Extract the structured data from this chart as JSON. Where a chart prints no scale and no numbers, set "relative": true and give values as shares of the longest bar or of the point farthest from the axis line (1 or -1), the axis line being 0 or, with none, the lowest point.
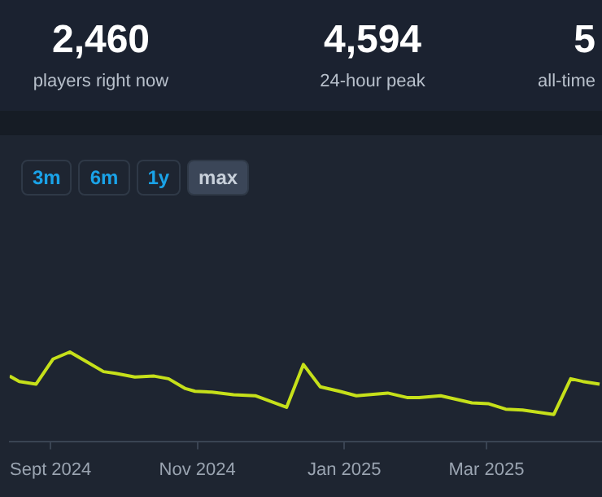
{
  "chart_data": {
    "type": "line",
    "relative": true,
    "annotations": [
      "2,460",
      "players right now",
      "4,594",
      "24-hour peak",
      "5",
      "all-time",
      "3m",
      "6m",
      "1y",
      "max"
    ],
    "x": [
      "2024-08-15",
      "2024-08-19",
      "2024-08-26",
      "2024-09-02",
      "2024-09-09",
      "2024-09-16",
      "2024-09-23",
      "2024-09-28",
      "2024-10-06",
      "2024-10-14",
      "2024-10-20",
      "2024-10-27",
      "2024-10-31",
      "2024-11-07",
      "2024-11-16",
      "2024-11-25",
      "2024-12-08",
      "2024-12-15",
      "2024-12-22",
      "2024-12-30",
      "2025-01-06",
      "2025-01-19",
      "2025-01-27",
      "2025-02-01",
      "2025-02-10",
      "2025-02-23",
      "2025-03-02",
      "2025-03-09",
      "2025-03-16",
      "2025-03-29",
      "2025-04-05",
      "2025-04-10",
      "2025-04-17"
    ],
    "series": [
      {
        "color": "#c6e01a",
        "values": [
          0.73,
          0.67,
          0.64,
          0.92,
          1,
          0.89,
          0.78,
          0.76,
          0.72,
          0.73,
          0.7,
          0.59,
          0.56,
          0.55,
          0.52,
          0.51,
          0.38,
          0.86,
          0.61,
          0.56,
          0.51,
          0.54,
          0.49,
          0.49,
          0.51,
          0.43,
          0.42,
          0.36,
          0.35,
          0.3,
          0.7,
          0.67,
          0.64
        ]
      }
    ],
    "xlim": [
      "2024-08-15",
      "2025-04-18"
    ],
    "xticks": [
      {
        "value": "2024-09-01",
        "label": "Sept 2024"
      },
      {
        "value": "2024-11-01",
        "label": "Nov 2024"
      },
      {
        "value": "2025-01-01",
        "label": "Jan 2025"
      },
      {
        "value": "2025-03-01",
        "label": "Mar 2025"
      }
    ],
    "grid": false,
    "legend": false,
    "marker": "none",
    "line_style": "solid"
  }
}
